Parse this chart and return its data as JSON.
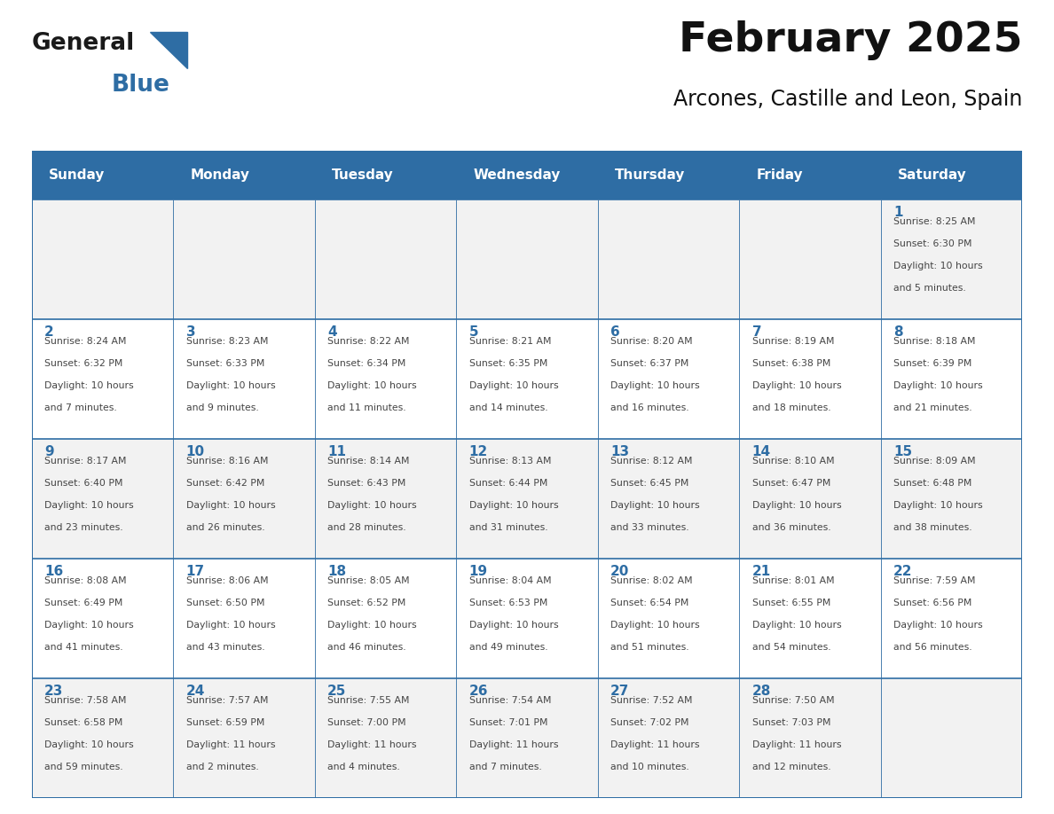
{
  "title": "February 2025",
  "subtitle": "Arcones, Castille and Leon, Spain",
  "header_bg": "#2E6DA4",
  "header_text_color": "#FFFFFF",
  "cell_bg_odd": "#F2F2F2",
  "cell_bg_even": "#FFFFFF",
  "day_number_color": "#2E6DA4",
  "text_color": "#444444",
  "border_color": "#2E6DA4",
  "days_of_week": [
    "Sunday",
    "Monday",
    "Tuesday",
    "Wednesday",
    "Thursday",
    "Friday",
    "Saturday"
  ],
  "weeks": [
    [
      {
        "day": "",
        "info": ""
      },
      {
        "day": "",
        "info": ""
      },
      {
        "day": "",
        "info": ""
      },
      {
        "day": "",
        "info": ""
      },
      {
        "day": "",
        "info": ""
      },
      {
        "day": "",
        "info": ""
      },
      {
        "day": "1",
        "info": "Sunrise: 8:25 AM\nSunset: 6:30 PM\nDaylight: 10 hours\nand 5 minutes."
      }
    ],
    [
      {
        "day": "2",
        "info": "Sunrise: 8:24 AM\nSunset: 6:32 PM\nDaylight: 10 hours\nand 7 minutes."
      },
      {
        "day": "3",
        "info": "Sunrise: 8:23 AM\nSunset: 6:33 PM\nDaylight: 10 hours\nand 9 minutes."
      },
      {
        "day": "4",
        "info": "Sunrise: 8:22 AM\nSunset: 6:34 PM\nDaylight: 10 hours\nand 11 minutes."
      },
      {
        "day": "5",
        "info": "Sunrise: 8:21 AM\nSunset: 6:35 PM\nDaylight: 10 hours\nand 14 minutes."
      },
      {
        "day": "6",
        "info": "Sunrise: 8:20 AM\nSunset: 6:37 PM\nDaylight: 10 hours\nand 16 minutes."
      },
      {
        "day": "7",
        "info": "Sunrise: 8:19 AM\nSunset: 6:38 PM\nDaylight: 10 hours\nand 18 minutes."
      },
      {
        "day": "8",
        "info": "Sunrise: 8:18 AM\nSunset: 6:39 PM\nDaylight: 10 hours\nand 21 minutes."
      }
    ],
    [
      {
        "day": "9",
        "info": "Sunrise: 8:17 AM\nSunset: 6:40 PM\nDaylight: 10 hours\nand 23 minutes."
      },
      {
        "day": "10",
        "info": "Sunrise: 8:16 AM\nSunset: 6:42 PM\nDaylight: 10 hours\nand 26 minutes."
      },
      {
        "day": "11",
        "info": "Sunrise: 8:14 AM\nSunset: 6:43 PM\nDaylight: 10 hours\nand 28 minutes."
      },
      {
        "day": "12",
        "info": "Sunrise: 8:13 AM\nSunset: 6:44 PM\nDaylight: 10 hours\nand 31 minutes."
      },
      {
        "day": "13",
        "info": "Sunrise: 8:12 AM\nSunset: 6:45 PM\nDaylight: 10 hours\nand 33 minutes."
      },
      {
        "day": "14",
        "info": "Sunrise: 8:10 AM\nSunset: 6:47 PM\nDaylight: 10 hours\nand 36 minutes."
      },
      {
        "day": "15",
        "info": "Sunrise: 8:09 AM\nSunset: 6:48 PM\nDaylight: 10 hours\nand 38 minutes."
      }
    ],
    [
      {
        "day": "16",
        "info": "Sunrise: 8:08 AM\nSunset: 6:49 PM\nDaylight: 10 hours\nand 41 minutes."
      },
      {
        "day": "17",
        "info": "Sunrise: 8:06 AM\nSunset: 6:50 PM\nDaylight: 10 hours\nand 43 minutes."
      },
      {
        "day": "18",
        "info": "Sunrise: 8:05 AM\nSunset: 6:52 PM\nDaylight: 10 hours\nand 46 minutes."
      },
      {
        "day": "19",
        "info": "Sunrise: 8:04 AM\nSunset: 6:53 PM\nDaylight: 10 hours\nand 49 minutes."
      },
      {
        "day": "20",
        "info": "Sunrise: 8:02 AM\nSunset: 6:54 PM\nDaylight: 10 hours\nand 51 minutes."
      },
      {
        "day": "21",
        "info": "Sunrise: 8:01 AM\nSunset: 6:55 PM\nDaylight: 10 hours\nand 54 minutes."
      },
      {
        "day": "22",
        "info": "Sunrise: 7:59 AM\nSunset: 6:56 PM\nDaylight: 10 hours\nand 56 minutes."
      }
    ],
    [
      {
        "day": "23",
        "info": "Sunrise: 7:58 AM\nSunset: 6:58 PM\nDaylight: 10 hours\nand 59 minutes."
      },
      {
        "day": "24",
        "info": "Sunrise: 7:57 AM\nSunset: 6:59 PM\nDaylight: 11 hours\nand 2 minutes."
      },
      {
        "day": "25",
        "info": "Sunrise: 7:55 AM\nSunset: 7:00 PM\nDaylight: 11 hours\nand 4 minutes."
      },
      {
        "day": "26",
        "info": "Sunrise: 7:54 AM\nSunset: 7:01 PM\nDaylight: 11 hours\nand 7 minutes."
      },
      {
        "day": "27",
        "info": "Sunrise: 7:52 AM\nSunset: 7:02 PM\nDaylight: 11 hours\nand 10 minutes."
      },
      {
        "day": "28",
        "info": "Sunrise: 7:50 AM\nSunset: 7:03 PM\nDaylight: 11 hours\nand 12 minutes."
      },
      {
        "day": "",
        "info": ""
      }
    ]
  ],
  "logo_text1": "General",
  "logo_text2": "Blue",
  "logo_color1": "#1a1a1a",
  "logo_color2": "#2E6DA4",
  "logo_triangle_color": "#2E6DA4",
  "figsize": [
    11.88,
    9.18
  ],
  "dpi": 100
}
